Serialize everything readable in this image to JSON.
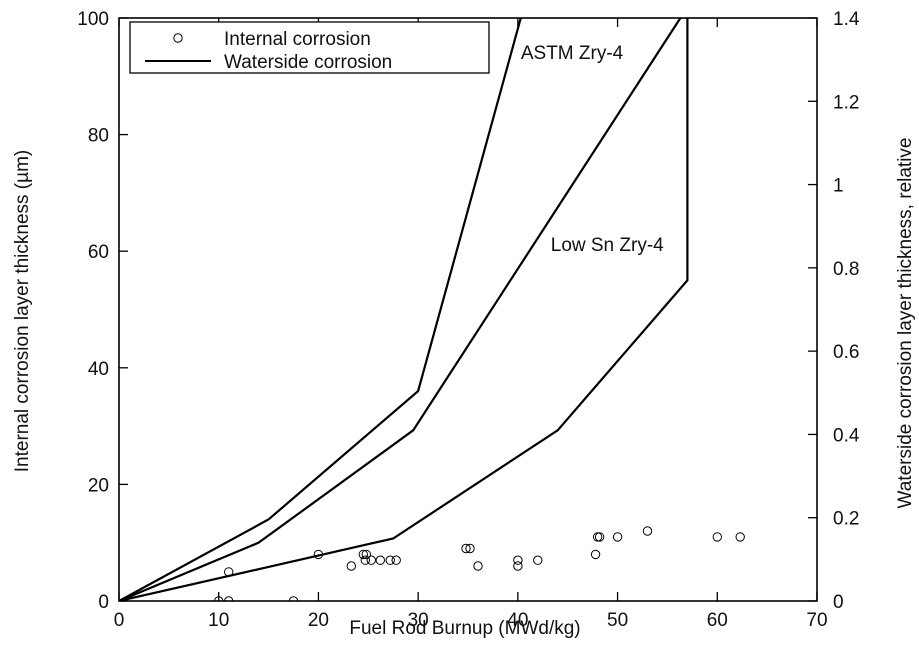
{
  "chart_data": {
    "type": "scatter",
    "xlabel": "Fuel Rod Burnup (MWd/kg)",
    "ylabel": "Internal corrosion layer thickness (µm)",
    "y2label": "Waterside corrosion layer thickness, relative",
    "xlim": [
      0,
      70
    ],
    "ylim": [
      0,
      100
    ],
    "y2lim": [
      0,
      1.4
    ],
    "xticks": [
      "0",
      "10",
      "20",
      "30",
      "40",
      "50",
      "60",
      "70"
    ],
    "yticks": [
      "0",
      "20",
      "40",
      "60",
      "80",
      "100"
    ],
    "y2ticks": [
      "0",
      "0.2",
      "0.4",
      "0.6",
      "0.8",
      "1",
      "1.2",
      "1.4"
    ],
    "legend": {
      "position": "top-left",
      "entries": [
        "Internal corrosion",
        "Waterside corrosion"
      ]
    },
    "grid": false,
    "annotations": [
      {
        "text": "ASTM Zry-4",
        "x": 40.3,
        "y": 93
      },
      {
        "text": "Low Sn Zry-4",
        "x": 43.3,
        "y": 60
      }
    ],
    "series": [
      {
        "kind": "points",
        "values": [
          {
            "x": 10,
            "y": 0
          },
          {
            "x": 11,
            "y": 0
          },
          {
            "x": 11,
            "y": 5
          },
          {
            "x": 17.5,
            "y": 0
          },
          {
            "x": 20,
            "y": 8
          },
          {
            "x": 23.3,
            "y": 6
          },
          {
            "x": 24.5,
            "y": 8
          },
          {
            "x": 24.8,
            "y": 8
          },
          {
            "x": 24.7,
            "y": 7
          },
          {
            "x": 25.3,
            "y": 7
          },
          {
            "x": 26.2,
            "y": 7
          },
          {
            "x": 27.2,
            "y": 7
          },
          {
            "x": 27.8,
            "y": 7
          },
          {
            "x": 34.8,
            "y": 9
          },
          {
            "x": 35.2,
            "y": 9
          },
          {
            "x": 36,
            "y": 6
          },
          {
            "x": 40,
            "y": 7
          },
          {
            "x": 40,
            "y": 6
          },
          {
            "x": 42,
            "y": 7
          },
          {
            "x": 47.8,
            "y": 8
          },
          {
            "x": 48,
            "y": 11
          },
          {
            "x": 48.2,
            "y": 11
          },
          {
            "x": 50,
            "y": 11
          },
          {
            "x": 53,
            "y": 12
          },
          {
            "x": 60,
            "y": 11
          },
          {
            "x": 62.3,
            "y": 11
          }
        ]
      },
      {
        "kind": "line",
        "axis": "right",
        "values": [
          {
            "x": 0,
            "y": 0
          },
          {
            "x": 15,
            "y": 0.196
          },
          {
            "x": 30,
            "y": 0.504
          },
          {
            "x": 40.3,
            "y": 1.4
          }
        ]
      },
      {
        "kind": "line",
        "axis": "right",
        "values": [
          {
            "x": 0,
            "y": 0
          },
          {
            "x": 14,
            "y": 0.14
          },
          {
            "x": 29.5,
            "y": 0.41
          },
          {
            "x": 56.3,
            "y": 1.4
          }
        ]
      },
      {
        "kind": "line",
        "axis": "right",
        "values": [
          {
            "x": 0,
            "y": 0
          },
          {
            "x": 27.5,
            "y": 0.15
          },
          {
            "x": 44,
            "y": 0.41
          },
          {
            "x": 57,
            "y": 0.77
          },
          {
            "x": 57,
            "y": 1.4
          }
        ]
      }
    ]
  }
}
